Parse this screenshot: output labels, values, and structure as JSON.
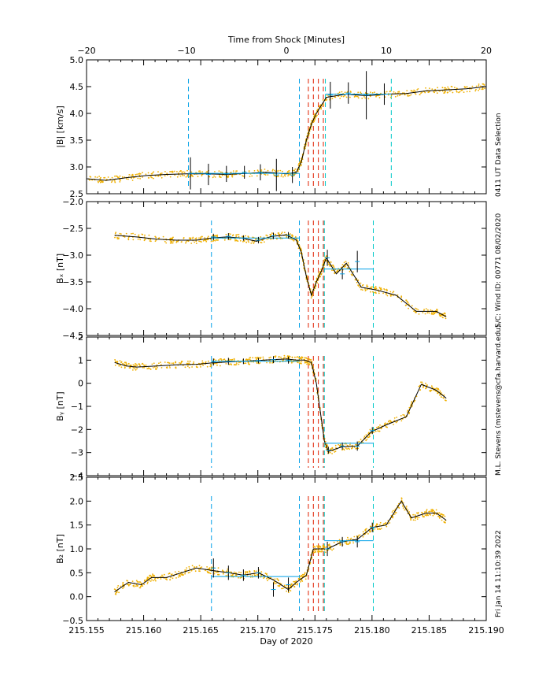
{
  "chart_data": {
    "type": "line",
    "top_axis": {
      "label": "Time from Shock [Minutes]",
      "ticks": [
        "−20",
        "−10",
        "0",
        "10",
        "20"
      ],
      "tick_values": [
        -20,
        -10,
        0,
        10,
        20
      ],
      "range": [
        -20,
        20
      ]
    },
    "bottom_axis": {
      "label": "Day of 2020",
      "ticks": [
        "215.155",
        "215.160",
        "215.165",
        "215.170",
        "215.175",
        "215.180",
        "215.185",
        "215.190"
      ],
      "tick_values": [
        215.155,
        215.16,
        215.165,
        215.17,
        215.175,
        215.18,
        215.185,
        215.19
      ],
      "range": [
        215.155,
        215.19
      ]
    },
    "side_annotations": [
      "0411 UT Data Selection",
      "S/C: Wind ID: 00771 08/02/2020",
      "M.L. Stevens (mstevens@cfa.harvard.edu)",
      "Fri Jan 14 11:10:39 2022"
    ],
    "colors": {
      "data": "#f0b000",
      "fit": "#000000",
      "window": "#00a0e8",
      "window2": "#00c8c8",
      "shock": "#e02000"
    },
    "shock_lines_minutes": [
      2.2,
      2.7,
      3.2,
      3.7
    ],
    "panels": [
      {
        "name": "B",
        "ylabel": "|B| [km/s]",
        "ylim": [
          2.5,
          5.0
        ],
        "yticks": [
          "2.5",
          "3.0",
          "3.5",
          "4.0",
          "4.5",
          "5.0"
        ],
        "ytick_values": [
          2.5,
          3.0,
          3.5,
          4.0,
          4.5,
          5.0
        ],
        "xlim_minutes": [
          -20,
          20
        ],
        "window_lines_minutes": [
          -9.8,
          1.3,
          3.9,
          10.5
        ],
        "line": {
          "x": [
            -20,
            -18,
            -16,
            -14,
            -12,
            -10,
            -8,
            -6,
            -4,
            -2,
            0,
            1,
            1.5,
            2,
            2.5,
            3,
            4,
            6,
            8,
            10,
            12,
            14,
            16,
            18,
            20
          ],
          "y": [
            2.78,
            2.75,
            2.8,
            2.84,
            2.86,
            2.87,
            2.87,
            2.86,
            2.88,
            2.9,
            2.87,
            2.9,
            3.1,
            3.5,
            3.8,
            4.0,
            4.3,
            4.36,
            4.33,
            4.36,
            4.37,
            4.42,
            4.44,
            4.46,
            4.5
          ]
        },
        "fit_points": {
          "x": [
            -9.6,
            -7.8,
            -6,
            -4.2,
            -2.6,
            -1,
            0.6,
            4.4,
            6.2,
            8,
            9.8
          ],
          "y": [
            2.88,
            2.86,
            2.87,
            2.9,
            2.9,
            2.85,
            2.85,
            4.34,
            4.38,
            4.34,
            4.36
          ],
          "err": [
            0.3,
            0.2,
            0.15,
            0.12,
            0.15,
            0.3,
            0.15,
            0.25,
            0.2,
            0.45,
            0.2
          ]
        },
        "levels": [
          {
            "x": [
              -9.8,
              1.3
            ],
            "y": 2.88
          },
          {
            "x": [
              3.9,
              10.5
            ],
            "y": 4.36
          }
        ]
      },
      {
        "name": "Bx",
        "ylabel": "Bₓ [nT]",
        "ylim": [
          -4.5,
          -2.0
        ],
        "yticks": [
          "−4.5",
          "−4.0",
          "−3.5",
          "−3.0",
          "−2.5",
          "−2.0"
        ],
        "ytick_values": [
          -4.5,
          -4.0,
          -3.5,
          -3.0,
          -2.5,
          -2.0
        ],
        "xlim_minutes": [
          -20,
          20
        ],
        "window_lines_minutes": [
          -7.5,
          1.3,
          3.8,
          8.7
        ],
        "line": {
          "x": [
            -17.2,
            -15,
            -13,
            -11,
            -9,
            -7.5,
            -6,
            -4.5,
            -3,
            -1.5,
            0,
            1,
            1.5,
            2,
            2.5,
            3,
            3.5,
            4,
            5,
            6,
            7.5,
            9,
            11,
            13,
            15,
            16
          ],
          "y": [
            -2.63,
            -2.66,
            -2.7,
            -2.72,
            -2.72,
            -2.68,
            -2.66,
            -2.68,
            -2.74,
            -2.65,
            -2.62,
            -2.72,
            -2.95,
            -3.4,
            -3.75,
            -3.5,
            -3.3,
            -3.05,
            -3.35,
            -3.15,
            -3.6,
            -3.65,
            -3.75,
            -4.05,
            -4.05,
            -4.15
          ]
        },
        "fit_points": {
          "x": [
            -7.3,
            -5.8,
            -4.3,
            -2.8,
            -1.3,
            0.2,
            4.1,
            5.6,
            7.1
          ],
          "y": [
            -2.66,
            -2.65,
            -2.68,
            -2.72,
            -2.64,
            -2.63,
            -3.05,
            -3.35,
            -3.12
          ],
          "err": [
            0.06,
            0.06,
            0.05,
            0.06,
            0.06,
            0.06,
            0.15,
            0.1,
            0.2
          ]
        },
        "levels": [
          {
            "x": [
              -7.5,
              1.3
            ],
            "y": -2.68
          },
          {
            "x": [
              3.8,
              8.7
            ],
            "y": -3.26
          }
        ]
      },
      {
        "name": "By",
        "ylabel": "Bᵧ [nT]",
        "ylim": [
          -4,
          2
        ],
        "yticks": [
          "−4",
          "−3",
          "−2",
          "−1",
          "0",
          "1",
          "2"
        ],
        "ytick_values": [
          -4,
          -3,
          -2,
          -1,
          0,
          1,
          2
        ],
        "xlim_minutes": [
          -20,
          20
        ],
        "window_lines_minutes": [
          -7.5,
          1.3,
          3.8,
          8.7
        ],
        "line": {
          "x": [
            -17.2,
            -16,
            -15,
            -13,
            -11,
            -9,
            -7.5,
            -6,
            -4.5,
            -3,
            -1.5,
            0,
            1,
            1.8,
            2.5,
            3,
            3.8,
            4.2,
            5.6,
            7.1,
            8.5,
            10,
            12,
            13.5,
            15,
            16
          ],
          "y": [
            0.9,
            0.75,
            0.7,
            0.75,
            0.8,
            0.82,
            0.88,
            0.92,
            0.95,
            0.98,
            1.02,
            1.05,
            1.0,
            1.0,
            0.9,
            0.0,
            -2.5,
            -2.95,
            -2.75,
            -2.72,
            -2.1,
            -1.8,
            -1.45,
            -0.05,
            -0.3,
            -0.65
          ]
        },
        "fit_points": {
          "x": [
            -7.3,
            -5.8,
            -4.3,
            -2.8,
            -1.3,
            0.2,
            4.2,
            5.6,
            7.1,
            8.6
          ],
          "y": [
            0.92,
            0.95,
            0.95,
            0.98,
            1.02,
            1.0,
            -2.9,
            -2.72,
            -2.72,
            -2.05
          ],
          "err": [
            0.15,
            0.15,
            0.12,
            0.12,
            0.15,
            0.15,
            0.15,
            0.15,
            0.2,
            0.15
          ]
        },
        "levels": [
          {
            "x": [
              -7.5,
              1.3
            ],
            "y": 0.95
          },
          {
            "x": [
              3.8,
              8.7
            ],
            "y": -2.6
          }
        ]
      },
      {
        "name": "Bz",
        "ylabel": "B₂ [nT]",
        "ylim": [
          -0.5,
          2.5
        ],
        "yticks": [
          "−0.5",
          "0.0",
          "0.5",
          "1.0",
          "1.5",
          "2.0",
          "2.5"
        ],
        "ytick_values": [
          -0.5,
          0.0,
          0.5,
          1.0,
          1.5,
          2.0,
          2.5
        ],
        "xlim_minutes": [
          -20,
          20
        ],
        "window_lines_minutes": [
          -7.5,
          1.3,
          3.8,
          8.7
        ],
        "line": {
          "x": [
            -17.2,
            -15.8,
            -14.5,
            -13.5,
            -12,
            -10.5,
            -9,
            -7.5,
            -5.8,
            -4.3,
            -2.8,
            -1.3,
            0.2,
            1.0,
            2.0,
            2.7,
            3.3,
            4.1,
            5.6,
            7.1,
            8.6,
            10,
            11.5,
            12.5,
            14,
            15,
            16
          ],
          "y": [
            0.1,
            0.3,
            0.25,
            0.4,
            0.4,
            0.5,
            0.6,
            0.55,
            0.5,
            0.45,
            0.5,
            0.35,
            0.15,
            0.3,
            0.45,
            1.0,
            1.0,
            1.0,
            1.15,
            1.2,
            1.45,
            1.5,
            2.0,
            1.65,
            1.75,
            1.75,
            1.6
          ]
        },
        "fit_points": {
          "x": [
            -7.3,
            -5.8,
            -4.3,
            -2.8,
            -1.3,
            0.2,
            4.1,
            5.6,
            7.1,
            8.6
          ],
          "y": [
            0.6,
            0.5,
            0.45,
            0.5,
            0.15,
            0.25,
            1.0,
            1.15,
            1.15,
            1.45
          ],
          "err": [
            0.2,
            0.15,
            0.12,
            0.12,
            0.15,
            0.15,
            0.15,
            0.1,
            0.12,
            0.1
          ]
        },
        "levels": [
          {
            "x": [
              -7.5,
              1.3
            ],
            "y": 0.42
          },
          {
            "x": [
              3.8,
              8.7
            ],
            "y": 1.17
          }
        ]
      }
    ]
  }
}
